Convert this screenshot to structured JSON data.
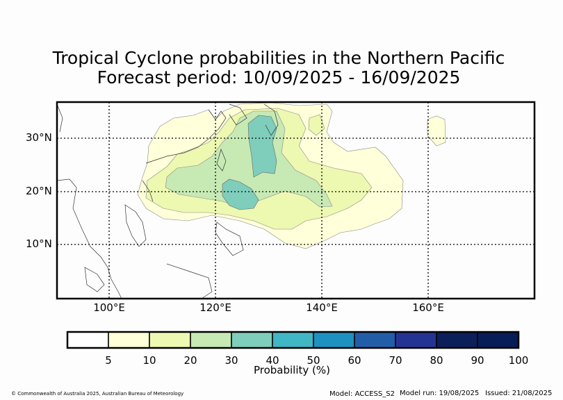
{
  "title_line1": "Tropical Cyclone probabilities in the Northern Pacific",
  "title_line2": "Forecast period: 10/09/2025 - 16/09/2025",
  "map": {
    "lat_labels": [
      "30°N",
      "20°N",
      "10°N"
    ],
    "lon_labels": [
      "100°E",
      "120°E",
      "140°E",
      "160°E"
    ],
    "extent": {
      "lon_min": 90,
      "lon_max": 180,
      "lat_min": 0,
      "lat_max": 37
    }
  },
  "colorbar": {
    "label": "Probability (%)",
    "ticks": [
      "5",
      "10",
      "20",
      "30",
      "40",
      "50",
      "60",
      "70",
      "80",
      "90",
      "100"
    ],
    "colors": [
      "#ffffff",
      "#ffffd9",
      "#edf8b1",
      "#c7e9b4",
      "#7fcdbb",
      "#41b6c4",
      "#1d91c0",
      "#225ea8",
      "#253494",
      "#0b1f5a",
      "#081d58"
    ]
  },
  "footer": {
    "copyright": "© Commonwealth of Australia 2025, Australian Bureau of Meteorology",
    "model": "Model: ACCESS_S2",
    "model_run": "Model run: 19/08/2025",
    "issued": "Issued: 21/08/2025"
  }
}
